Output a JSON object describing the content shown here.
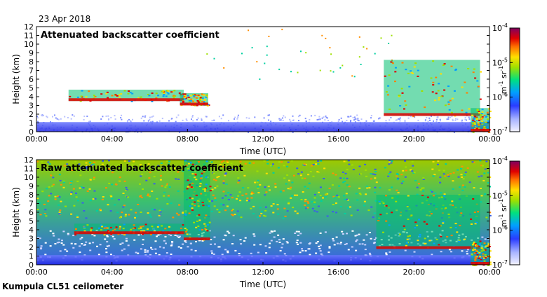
{
  "date": "23 Apr 2018",
  "footer": "Kumpula CL51 ceilometer",
  "chart_data": [
    {
      "type": "heatmap",
      "title": "Attenuated backscatter coefficient",
      "xlabel": "Time (UTC)",
      "ylabel": "Height (km)",
      "x_ticks": [
        "00:00",
        "04:00",
        "08:00",
        "12:00",
        "16:00",
        "20:00",
        "00:00"
      ],
      "y_ticks": [
        0,
        1,
        2,
        3,
        4,
        5,
        6,
        7,
        8,
        9,
        10,
        11,
        12
      ],
      "ylim": [
        0,
        12
      ],
      "colorbar": {
        "ticks": [
          "10",
          "10",
          "10",
          "10"
        ],
        "exponents": [
          "-4",
          "-5",
          "-6",
          "-7"
        ],
        "unit_base": "m",
        "unit_base_exp": "-1",
        "unit_sr": "sr",
        "unit_sr_exp": "-1",
        "scale": "log",
        "range": [
          1e-07,
          0.0001
        ]
      },
      "layers": [
        {
          "start_hour": 1.7,
          "end_hour": 7.8,
          "base_km": 3.5,
          "top_km": 4.8
        },
        {
          "start_hour": 7.6,
          "end_hour": 9.1,
          "base_km": 3.0,
          "top_km": 4.4
        },
        {
          "start_hour": 18.4,
          "end_hour": 23.5,
          "base_km": 1.8,
          "top_km": 8.2
        },
        {
          "start_hour": 23.0,
          "end_hour": 24.0,
          "base_km": 0.0,
          "top_km": 2.7
        }
      ]
    },
    {
      "type": "heatmap",
      "title": "Raw attenuated backscatter coefficient",
      "xlabel": "Time (UTC)",
      "ylabel": "Height (km)",
      "x_ticks": [
        "00:00",
        "04:00",
        "08:00",
        "12:00",
        "16:00",
        "20:00",
        "00:00"
      ],
      "y_ticks": [
        0,
        1,
        2,
        3,
        4,
        5,
        6,
        7,
        8,
        9,
        10,
        11,
        12
      ],
      "ylim": [
        0,
        12
      ],
      "colorbar": {
        "ticks": [
          "10",
          "10",
          "10",
          "10"
        ],
        "exponents": [
          "-4",
          "-5",
          "-6",
          "-7"
        ],
        "unit_base": "m",
        "unit_base_exp": "-1",
        "unit_sr": "sr",
        "unit_sr_exp": "-1",
        "scale": "log",
        "range": [
          1e-07,
          0.0001
        ]
      },
      "layers": [
        {
          "start_hour": 2.0,
          "end_hour": 7.9,
          "base_km": 3.5,
          "top_km": 4.7
        },
        {
          "start_hour": 7.8,
          "end_hour": 9.2,
          "base_km": 2.8,
          "top_km": 12.0
        },
        {
          "start_hour": 18.0,
          "end_hour": 23.5,
          "base_km": 1.8,
          "top_km": 8.0
        },
        {
          "start_hour": 23.0,
          "end_hour": 24.0,
          "base_km": 0.0,
          "top_km": 2.6
        }
      ]
    }
  ]
}
